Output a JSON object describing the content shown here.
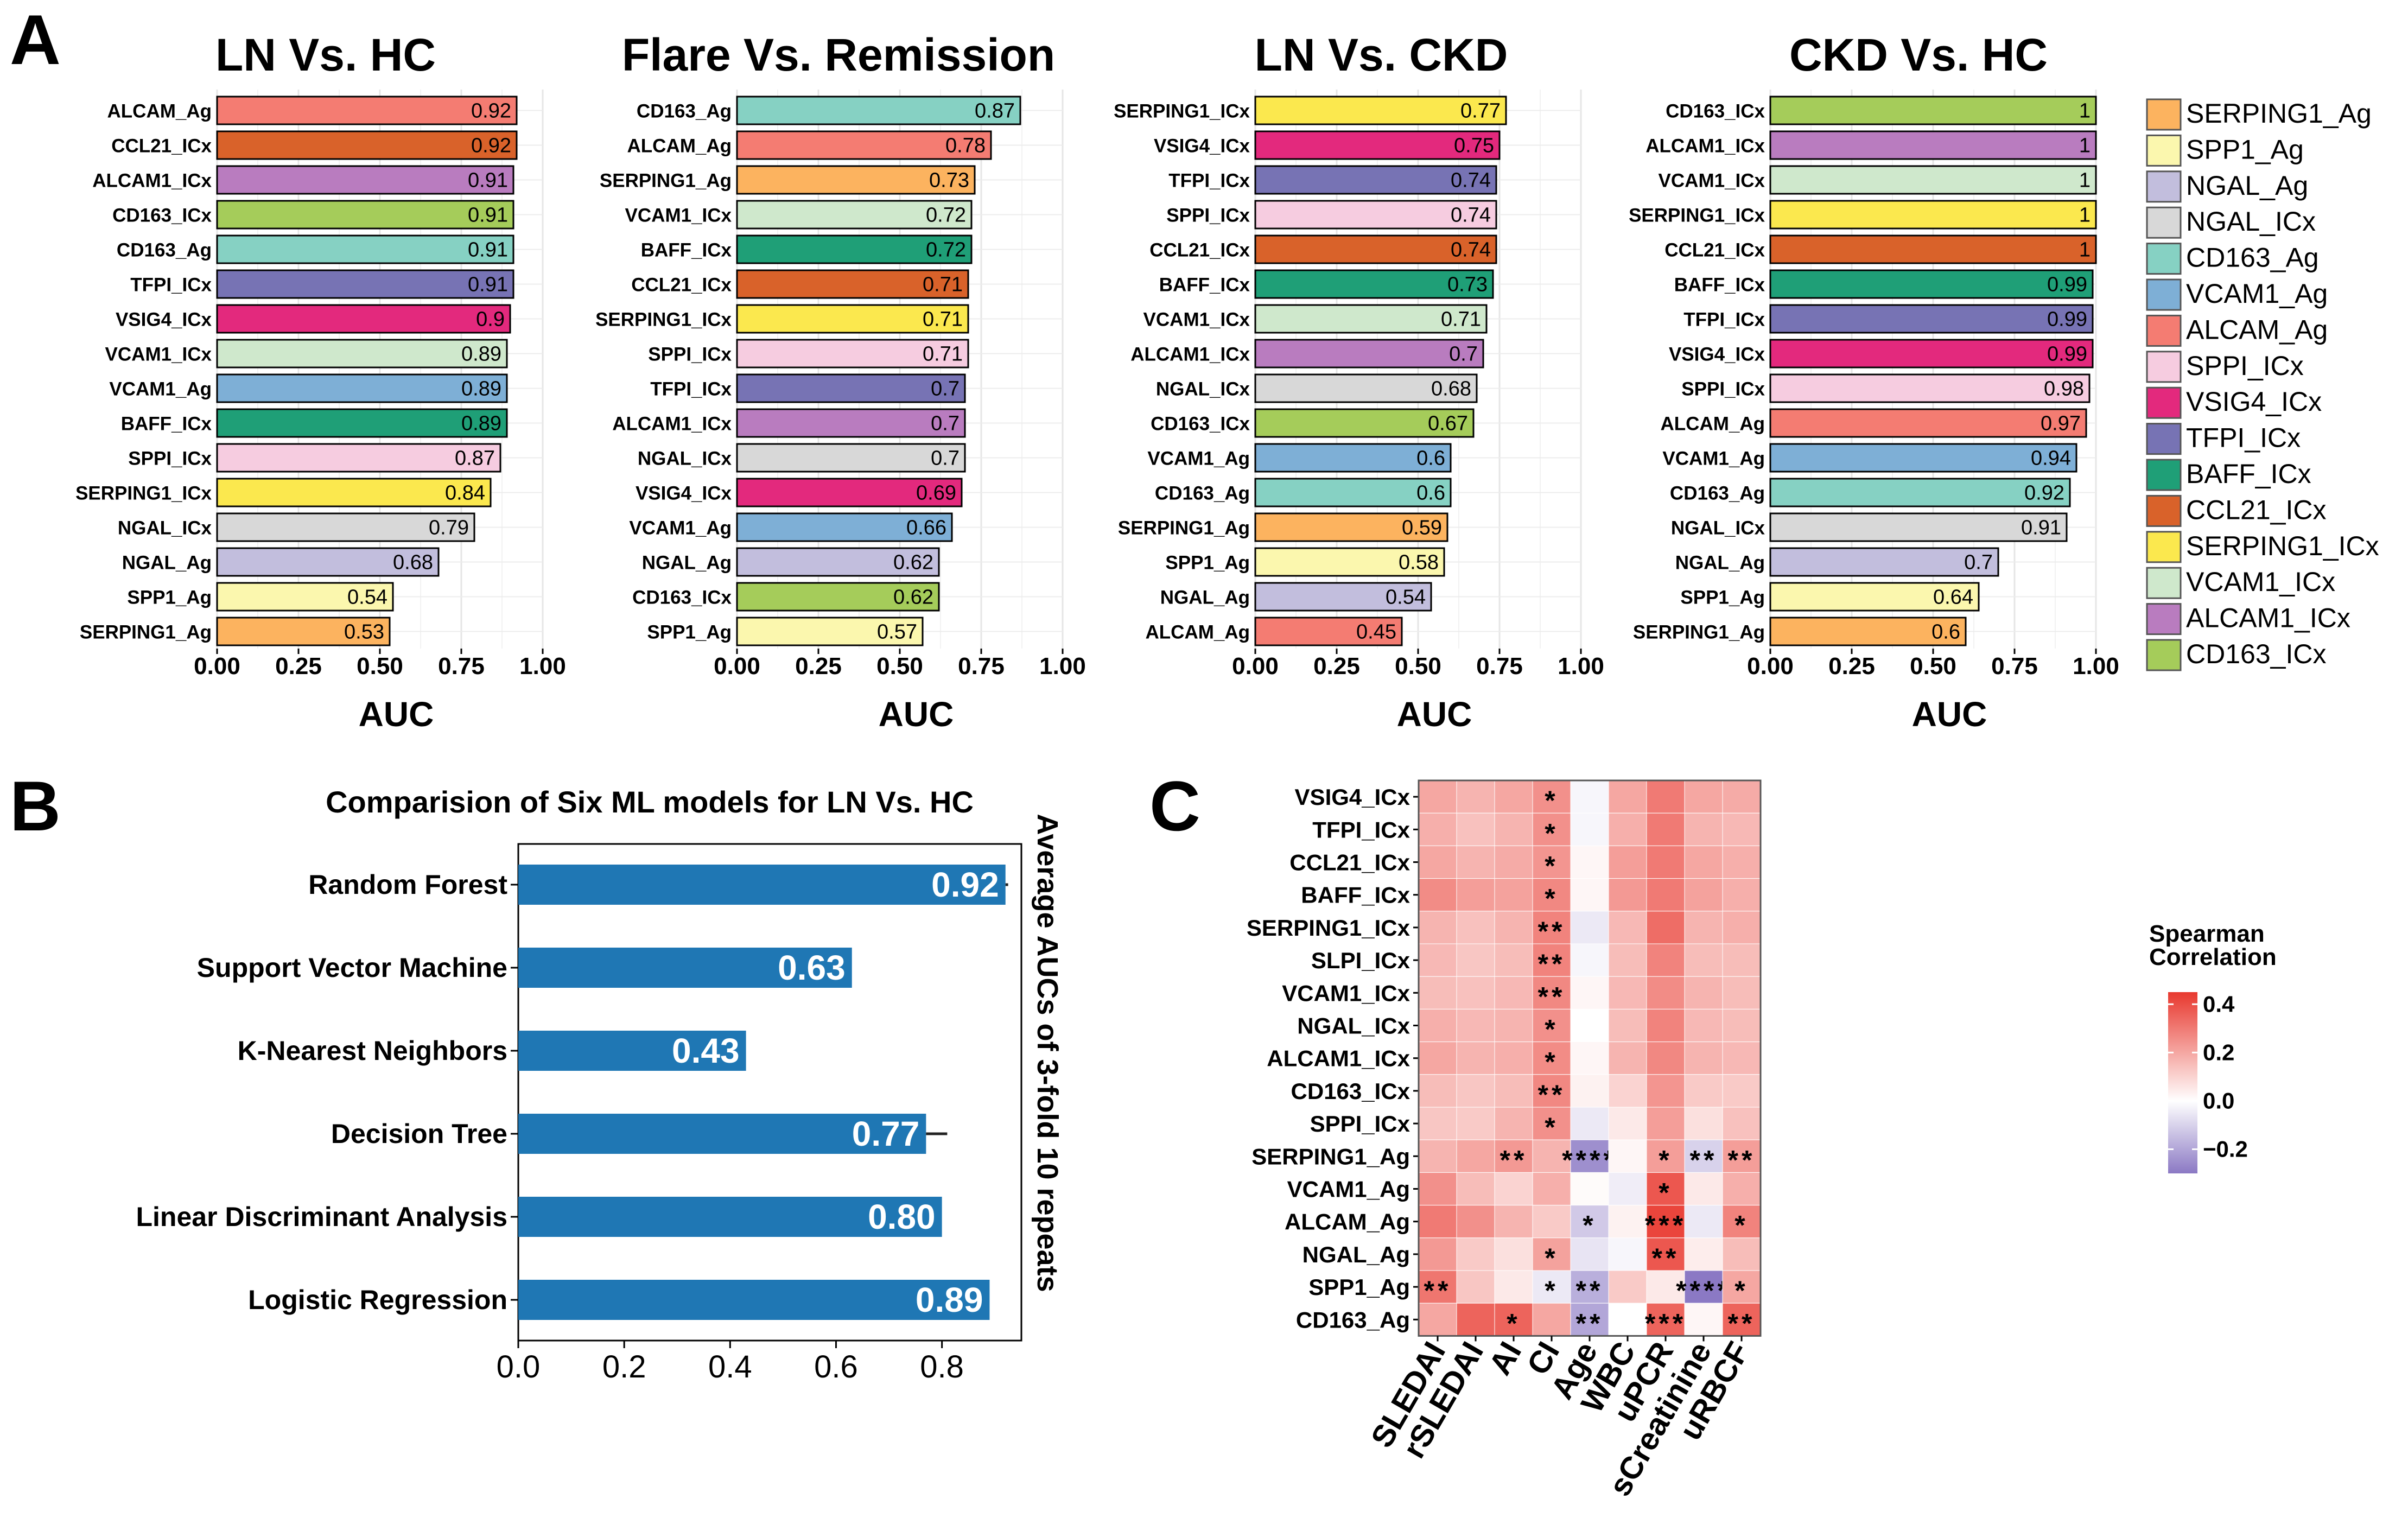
{
  "colors": {
    "SERPING1_Ag": "#fcb35f",
    "SPP1_Ag": "#fbf7ae",
    "NGAL_Ag": "#c2bedd",
    "NGAL_ICx": "#d8d8d8",
    "CD163_Ag": "#86d1c3",
    "VCAM1_Ag": "#7eafd6",
    "ALCAM_Ag": "#f47c72",
    "SPPI_ICx": "#f6cce0",
    "VSIG4_ICx": "#e3297d",
    "TFPI_ICx": "#7773b4",
    "BAFF_ICx": "#1f9f77",
    "CCL21_ICx": "#d9622a",
    "SERPING1_ICx": "#fbe84e",
    "VCAM1_ICx": "#cfe8cc",
    "ALCAM1_ICx": "#b97cbf",
    "CD163_ICx": "#a5cc5a",
    "model_bar": "#1f77b4",
    "heat_pos": "#e8382e",
    "heat_neg": "#8b79c4"
  },
  "panel_labels": [
    "A",
    "B",
    "C"
  ],
  "legend": {
    "items": [
      "SERPING1_Ag",
      "SPP1_Ag",
      "NGAL_Ag",
      "NGAL_ICx",
      "CD163_Ag",
      "VCAM1_Ag",
      "ALCAM_Ag",
      "SPPI_ICx",
      "VSIG4_ICx",
      "TFPI_ICx",
      "BAFF_ICx",
      "CCL21_ICx",
      "SERPING1_ICx",
      "VCAM1_ICx",
      "ALCAM1_ICx",
      "CD163_ICx"
    ]
  },
  "chart_data": [
    {
      "type": "bar",
      "orientation": "horizontal",
      "panel": "A",
      "title": "LN Vs. HC",
      "xlabel": "AUC",
      "xlim": [
        0,
        1
      ],
      "xticks": [
        "0.00",
        "0.25",
        "0.50",
        "0.75",
        "1.00"
      ],
      "categories": [
        "ALCAM_Ag",
        "CCL21_ICx",
        "ALCAM1_ICx",
        "CD163_ICx",
        "CD163_Ag",
        "TFPI_ICx",
        "VSIG4_ICx",
        "VCAM1_ICx",
        "VCAM1_Ag",
        "BAFF_ICx",
        "SPPI_ICx",
        "SERPING1_ICx",
        "NGAL_ICx",
        "NGAL_Ag",
        "SPP1_Ag",
        "SERPING1_Ag"
      ],
      "values": [
        0.92,
        0.92,
        0.91,
        0.91,
        0.91,
        0.91,
        0.9,
        0.89,
        0.89,
        0.89,
        0.87,
        0.84,
        0.79,
        0.68,
        0.54,
        0.53
      ],
      "labels": [
        "0.92",
        "0.92",
        "0.91",
        "0.91",
        "0.91",
        "0.91",
        "0.9",
        "0.89",
        "0.89",
        "0.89",
        "0.87",
        "0.84",
        "0.79",
        "0.68",
        "0.54",
        "0.53"
      ]
    },
    {
      "type": "bar",
      "orientation": "horizontal",
      "panel": "A",
      "title": "Flare Vs. Remission",
      "xlabel": "AUC",
      "xlim": [
        0,
        1
      ],
      "xticks": [
        "0.00",
        "0.25",
        "0.50",
        "0.75",
        "1.00"
      ],
      "categories": [
        "CD163_Ag",
        "ALCAM_Ag",
        "SERPING1_Ag",
        "VCAM1_ICx",
        "BAFF_ICx",
        "CCL21_ICx",
        "SERPING1_ICx",
        "SPPI_ICx",
        "TFPI_ICx",
        "ALCAM1_ICx",
        "NGAL_ICx",
        "VSIG4_ICx",
        "VCAM1_Ag",
        "NGAL_Ag",
        "CD163_ICx",
        "SPP1_Ag"
      ],
      "values": [
        0.87,
        0.78,
        0.73,
        0.72,
        0.72,
        0.71,
        0.71,
        0.71,
        0.7,
        0.7,
        0.7,
        0.69,
        0.66,
        0.62,
        0.62,
        0.57
      ],
      "labels": [
        "0.87",
        "0.78",
        "0.73",
        "0.72",
        "0.72",
        "0.71",
        "0.71",
        "0.71",
        "0.7",
        "0.7",
        "0.7",
        "0.69",
        "0.66",
        "0.62",
        "0.62",
        "0.57"
      ]
    },
    {
      "type": "bar",
      "orientation": "horizontal",
      "panel": "A",
      "title": "LN Vs. CKD",
      "xlabel": "AUC",
      "xlim": [
        0,
        1
      ],
      "xticks": [
        "0.00",
        "0.25",
        "0.50",
        "0.75",
        "1.00"
      ],
      "categories": [
        "SERPING1_ICx",
        "VSIG4_ICx",
        "TFPI_ICx",
        "SPPI_ICx",
        "CCL21_ICx",
        "BAFF_ICx",
        "VCAM1_ICx",
        "ALCAM1_ICx",
        "NGAL_ICx",
        "CD163_ICx",
        "VCAM1_Ag",
        "CD163_Ag",
        "SERPING1_Ag",
        "SPP1_Ag",
        "NGAL_Ag",
        "ALCAM_Ag"
      ],
      "values": [
        0.77,
        0.75,
        0.74,
        0.74,
        0.74,
        0.73,
        0.71,
        0.7,
        0.68,
        0.67,
        0.6,
        0.6,
        0.59,
        0.58,
        0.54,
        0.45
      ],
      "labels": [
        "0.77",
        "0.75",
        "0.74",
        "0.74",
        "0.74",
        "0.73",
        "0.71",
        "0.7",
        "0.68",
        "0.67",
        "0.6",
        "0.6",
        "0.59",
        "0.58",
        "0.54",
        "0.45"
      ]
    },
    {
      "type": "bar",
      "orientation": "horizontal",
      "panel": "A",
      "title": "CKD Vs. HC",
      "xlabel": "AUC",
      "xlim": [
        0,
        1
      ],
      "xticks": [
        "0.00",
        "0.25",
        "0.50",
        "0.75",
        "1.00"
      ],
      "categories": [
        "CD163_ICx",
        "ALCAM1_ICx",
        "VCAM1_ICx",
        "SERPING1_ICx",
        "CCL21_ICx",
        "BAFF_ICx",
        "TFPI_ICx",
        "VSIG4_ICx",
        "SPPI_ICx",
        "ALCAM_Ag",
        "VCAM1_Ag",
        "CD163_Ag",
        "NGAL_ICx",
        "NGAL_Ag",
        "SPP1_Ag",
        "SERPING1_Ag"
      ],
      "values": [
        1,
        1,
        1,
        1,
        1,
        0.99,
        0.99,
        0.99,
        0.98,
        0.97,
        0.94,
        0.92,
        0.91,
        0.7,
        0.64,
        0.6
      ],
      "labels": [
        "1",
        "1",
        "1",
        "1",
        "1",
        "0.99",
        "0.99",
        "0.99",
        "0.98",
        "0.97",
        "0.94",
        "0.92",
        "0.91",
        "0.7",
        "0.64",
        "0.6"
      ]
    },
    {
      "type": "bar",
      "orientation": "horizontal",
      "panel": "B",
      "title": "Comparision of Six ML models for LN Vs. HC",
      "ylabel": "Average AUCs of 3-fold 10 repeats",
      "xlim": [
        0,
        0.95
      ],
      "xticks": [
        "0.0",
        "0.2",
        "0.4",
        "0.6",
        "0.8"
      ],
      "categories": [
        "Random Forest",
        "Support Vector Machine",
        "K-Nearest Neighbors",
        "Decision Tree",
        "Linear Discriminant Analysis",
        "Logistic Regression"
      ],
      "values": [
        0.92,
        0.63,
        0.43,
        0.77,
        0.8,
        0.89
      ],
      "labels": [
        "0.92",
        "0.63",
        "0.43",
        "0.77",
        "0.80",
        "0.89"
      ],
      "errors": [
        0.005,
        0,
        0,
        0.04,
        0,
        0
      ]
    },
    {
      "type": "heatmap",
      "panel": "C",
      "legend_title": [
        "Spearman",
        "Correlation"
      ],
      "colorbar_ticks": [
        "0.4",
        "0.2",
        "0.0",
        "−0.2"
      ],
      "colorbar_values": [
        0.4,
        0.2,
        0.0,
        -0.2
      ],
      "range": [
        -0.3,
        0.45
      ],
      "rows": [
        "VSIG4_ICx",
        "TFPI_ICx",
        "CCL21_ICx",
        "BAFF_ICx",
        "SERPING1_ICx",
        "SLPI_ICx",
        "VCAM1_ICx",
        "NGAL_ICx",
        "ALCAM1_ICx",
        "CD163_ICx",
        "SPPI_ICx",
        "SERPING1_Ag",
        "VCAM1_Ag",
        "ALCAM_Ag",
        "NGAL_Ag",
        "SPP1_Ag",
        "CD163_Ag"
      ],
      "cols": [
        "SLEDAI",
        "rSLEDAI",
        "AI",
        "CI",
        "Age",
        "WBC",
        "uPCR",
        "sCreatinine",
        "uRBCF"
      ],
      "values": [
        [
          0.2,
          0.17,
          0.2,
          0.25,
          -0.02,
          0.2,
          0.3,
          0.2,
          0.19
        ],
        [
          0.18,
          0.14,
          0.17,
          0.25,
          -0.02,
          0.18,
          0.3,
          0.17,
          0.16
        ],
        [
          0.2,
          0.17,
          0.19,
          0.24,
          0.02,
          0.22,
          0.3,
          0.2,
          0.18
        ],
        [
          0.26,
          0.22,
          0.21,
          0.27,
          0.02,
          0.23,
          0.3,
          0.21,
          0.18
        ],
        [
          0.17,
          0.14,
          0.17,
          0.28,
          -0.05,
          0.16,
          0.33,
          0.17,
          0.18
        ],
        [
          0.16,
          0.13,
          0.15,
          0.28,
          -0.02,
          0.15,
          0.28,
          0.15,
          0.15
        ],
        [
          0.15,
          0.14,
          0.16,
          0.27,
          0.02,
          0.16,
          0.26,
          0.17,
          0.15
        ],
        [
          0.18,
          0.16,
          0.17,
          0.25,
          0.0,
          0.15,
          0.28,
          0.16,
          0.15
        ],
        [
          0.2,
          0.17,
          0.18,
          0.26,
          0.02,
          0.17,
          0.27,
          0.17,
          0.16
        ],
        [
          0.15,
          0.13,
          0.15,
          0.27,
          0.03,
          0.1,
          0.24,
          0.12,
          0.12
        ],
        [
          0.13,
          0.12,
          0.17,
          0.25,
          -0.05,
          0.05,
          0.22,
          0.07,
          0.14
        ],
        [
          0.17,
          0.2,
          0.23,
          0.17,
          -0.25,
          0.02,
          0.22,
          -0.1,
          0.22
        ],
        [
          0.25,
          0.15,
          0.1,
          0.18,
          0.01,
          -0.04,
          0.38,
          0.05,
          0.18
        ],
        [
          0.3,
          0.25,
          0.17,
          0.12,
          -0.12,
          0.03,
          0.42,
          -0.05,
          0.28
        ],
        [
          0.23,
          0.12,
          0.07,
          0.21,
          -0.06,
          -0.02,
          0.38,
          0.04,
          0.15
        ],
        [
          0.31,
          0.13,
          0.05,
          -0.05,
          -0.18,
          0.12,
          0.05,
          -0.3,
          0.2
        ],
        [
          0.2,
          0.35,
          0.35,
          0.2,
          -0.2,
          0.0,
          0.35,
          0.02,
          0.35
        ]
      ],
      "stars": [
        [
          "",
          "",
          "",
          "*",
          "",
          "",
          "",
          "",
          ""
        ],
        [
          "",
          "",
          "",
          "*",
          "",
          "",
          "",
          "",
          ""
        ],
        [
          "",
          "",
          "",
          "*",
          "",
          "",
          "",
          "",
          ""
        ],
        [
          "",
          "",
          "",
          "*",
          "",
          "",
          "",
          "",
          ""
        ],
        [
          "",
          "",
          "",
          "**",
          "",
          "",
          "",
          "",
          ""
        ],
        [
          "",
          "",
          "",
          "**",
          "",
          "",
          "",
          "",
          ""
        ],
        [
          "",
          "",
          "",
          "**",
          "",
          "",
          "",
          "",
          ""
        ],
        [
          "",
          "",
          "",
          "*",
          "",
          "",
          "",
          "",
          ""
        ],
        [
          "",
          "",
          "",
          "*",
          "",
          "",
          "",
          "",
          ""
        ],
        [
          "",
          "",
          "",
          "**",
          "",
          "",
          "",
          "",
          ""
        ],
        [
          "",
          "",
          "",
          "*",
          "",
          "",
          "",
          "",
          ""
        ],
        [
          "",
          "",
          "**",
          "",
          "****",
          "",
          "*",
          "**",
          "**"
        ],
        [
          "",
          "",
          "",
          "",
          "",
          "",
          "*",
          "",
          ""
        ],
        [
          "",
          "",
          "",
          "",
          "*",
          "",
          "***",
          "",
          "*"
        ],
        [
          "",
          "",
          "",
          "*",
          "",
          "",
          "**",
          "",
          ""
        ],
        [
          "**",
          "",
          "",
          "*",
          "**",
          "",
          "",
          "****",
          "*"
        ],
        [
          "",
          "",
          "*",
          "",
          "**",
          "",
          "***",
          "",
          "**"
        ]
      ]
    }
  ]
}
